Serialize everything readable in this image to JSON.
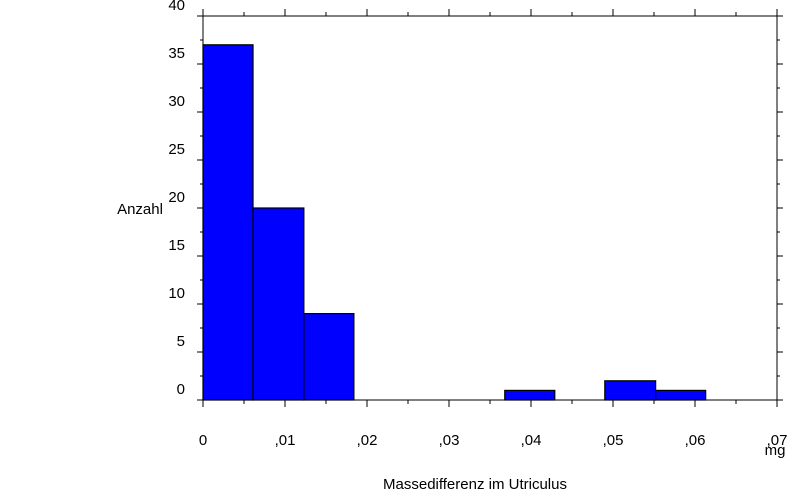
{
  "chart_data": {
    "type": "histogram",
    "xlabel": "Massedifferenz im Utriculus",
    "xunit": "mg",
    "ylabel": "Anzahl",
    "bins": [
      0,
      0.0061,
      0.0123,
      0.0184,
      0.0245,
      0.0307,
      0.0368,
      0.0429,
      0.049,
      0.0552,
      0.0613
    ],
    "values": [
      37,
      20,
      9,
      0,
      0,
      0,
      1,
      0,
      2,
      1
    ],
    "color": "#0000ff",
    "xlim": [
      0,
      0.07
    ],
    "xticks": [
      0,
      {
        "value": 0.01,
        "label": ",01"
      },
      {
        "value": 0.02,
        "label": ",02"
      },
      {
        "value": 0.03,
        "label": ",03"
      },
      {
        "value": 0.04,
        "label": ",04"
      },
      {
        "value": 0.05,
        "label": ",05"
      },
      {
        "value": 0.06,
        "label": ",06"
      },
      {
        "value": 0.07,
        "label": ",07"
      }
    ],
    "ylim": [
      0,
      40
    ],
    "yticks": [
      0,
      5,
      10,
      15,
      20,
      25,
      30,
      35,
      40
    ]
  }
}
